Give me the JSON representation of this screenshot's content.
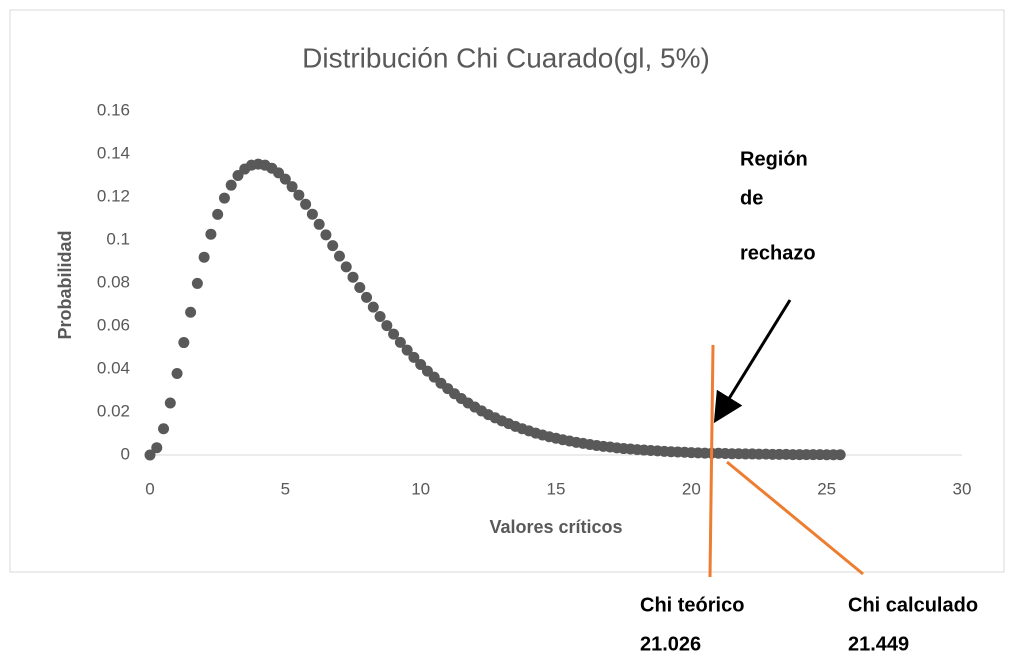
{
  "chart_data": {
    "type": "scatter",
    "title": "Distribución Chi Cuarado(gl, 5%)",
    "xlabel": "Valores críticos",
    "ylabel": "Probabilidad",
    "x": [
      0,
      0.25,
      0.5,
      0.75,
      1,
      1.25,
      1.5,
      1.75,
      2,
      2.25,
      2.5,
      2.75,
      3,
      3.25,
      3.5,
      3.75,
      4,
      4.25,
      4.5,
      4.75,
      5,
      5.25,
      5.5,
      5.75,
      6,
      6.25,
      6.5,
      6.75,
      7,
      7.25,
      7.5,
      7.75,
      8,
      8.25,
      8.5,
      8.75,
      9,
      9.25,
      9.5,
      9.75,
      10,
      10.25,
      10.5,
      10.75,
      11,
      11.25,
      11.5,
      11.75,
      12,
      12.25,
      12.5,
      12.75,
      13,
      13.25,
      13.5,
      13.75,
      14,
      14.25,
      14.5,
      14.75,
      15,
      15.25,
      15.5,
      15.75,
      16,
      16.25,
      16.5,
      16.75,
      17,
      17.25,
      17.5,
      17.75,
      18,
      18.25,
      18.5,
      18.75,
      19,
      19.25,
      19.5,
      19.75,
      20,
      20.25,
      20.5,
      20.75,
      21,
      21.25,
      21.5,
      21.75,
      22,
      22.25,
      22.5,
      22.75,
      23,
      23.25,
      23.5,
      23.75,
      24,
      24.25,
      24.5,
      24.75,
      25,
      25.25,
      25.5
    ],
    "series": [
      {
        "color": "#595959",
        "values": [
          0,
          0.0034,
          0.0122,
          0.0242,
          0.0379,
          0.0523,
          0.0664,
          0.0798,
          0.092,
          0.1027,
          0.1119,
          0.1195,
          0.1255,
          0.13,
          0.133,
          0.1348,
          0.1353,
          0.1348,
          0.1334,
          0.1312,
          0.1283,
          0.1248,
          0.1209,
          0.1166,
          0.112,
          0.1073,
          0.1024,
          0.0974,
          0.0925,
          0.0875,
          0.0827,
          0.0779,
          0.0733,
          0.0688,
          0.0644,
          0.0602,
          0.0562,
          0.0524,
          0.0488,
          0.0454,
          0.0421,
          0.039,
          0.0362,
          0.0334,
          0.0309,
          0.0285,
          0.0263,
          0.0242,
          0.0223,
          0.0205,
          0.0188,
          0.0173,
          0.0159,
          0.0146,
          0.0133,
          0.0122,
          0.0112,
          0.0102,
          0.0093,
          0.0085,
          0.0078,
          0.0071,
          0.0065,
          0.0059,
          0.0054,
          0.0049,
          0.0044,
          0.004,
          0.0037,
          0.0033,
          0.003,
          0.0028,
          0.0025,
          0.0023,
          0.0021,
          0.0019,
          0.0017,
          0.0015,
          0.0014,
          0.0013,
          0.0011,
          0.001,
          0.0009,
          0.0008,
          0.0008,
          0.0007,
          0.0006,
          0.0006,
          0.0005,
          0.0005,
          0.0004,
          0.0004,
          0.0003,
          0.0003,
          0.0003,
          0.0002,
          0.0002,
          0.0002,
          0.0002,
          0.0002,
          0.0001,
          0.0001,
          0.0001
        ]
      }
    ],
    "xlim": [
      0,
      30
    ],
    "xticks": [
      0,
      5,
      10,
      15,
      20,
      25,
      30
    ],
    "ylim": [
      0,
      0.16
    ],
    "yticks": [
      0,
      0.02,
      0.04,
      0.06,
      0.08,
      0.1,
      0.12,
      0.14,
      0.16
    ],
    "grid": false,
    "annotations": [
      "Región",
      "de",
      "rechazo"
    ],
    "critical_values": [
      {
        "name": "Chi teórico",
        "value": 21.026
      },
      {
        "name": "Chi calculado",
        "value": 21.449
      }
    ]
  }
}
